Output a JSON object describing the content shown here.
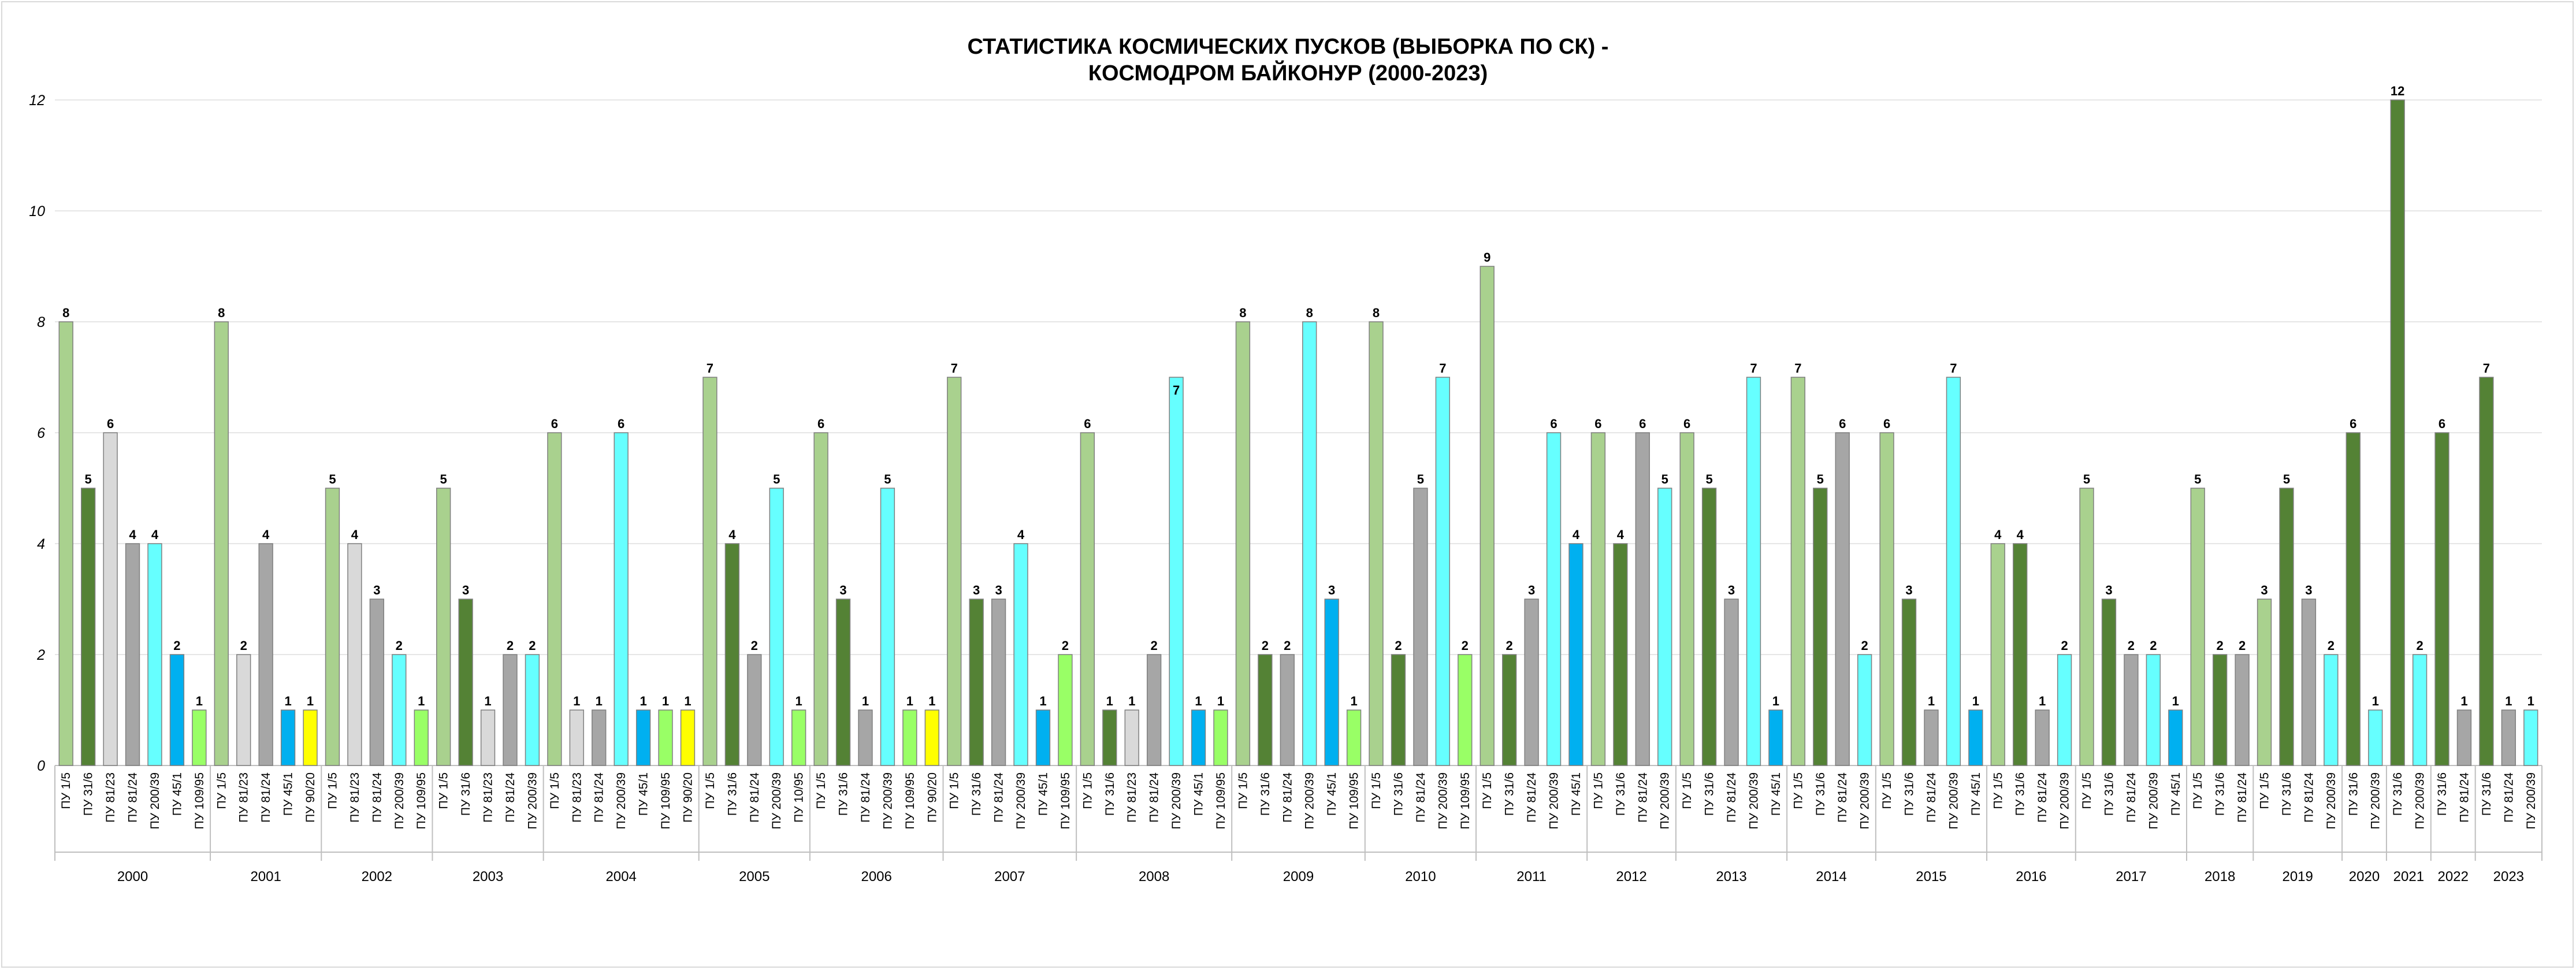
{
  "chart_data": {
    "type": "bar",
    "title": "СТАТИСТИКА КОСМИЧЕСКИХ ПУСКОВ (ВЫБОРКА ПО СК) -",
    "subtitle": "КОСМОДРОМ БАЙКОНУР (2000-2023)",
    "xlabel": "",
    "ylabel": "",
    "ylim": [
      0,
      12
    ],
    "yticks": [
      "0",
      "2",
      "4",
      "6",
      "8",
      "10",
      "12"
    ],
    "grid": true,
    "legend": "none",
    "colors": {
      "ПУ 1/5": "#a9d18e",
      "ПУ 31/6": "#548235",
      "ПУ 81/23": "#d9d9d9",
      "ПУ 81/24": "#a6a6a6",
      "ПУ 200/39": "#66ffff",
      "ПУ 45/1": "#00b0f0",
      "ПУ 109/95": "#99ff66",
      "ПУ 90/20": "#ffff00"
    },
    "groups": [
      {
        "year": "2000",
        "bars": [
          {
            "pad": "ПУ 1/5",
            "value": 8
          },
          {
            "pad": "ПУ 31/6",
            "value": 5
          },
          {
            "pad": "ПУ 81/23",
            "value": 6
          },
          {
            "pad": "ПУ 81/24",
            "value": 4
          },
          {
            "pad": "ПУ 200/39",
            "value": 4
          },
          {
            "pad": "ПУ 45/1",
            "value": 2
          },
          {
            "pad": "ПУ 109/95",
            "value": 1
          }
        ]
      },
      {
        "year": "2001",
        "bars": [
          {
            "pad": "ПУ 1/5",
            "value": 8
          },
          {
            "pad": "ПУ 81/23",
            "value": 2
          },
          {
            "pad": "ПУ 81/24",
            "value": 4
          },
          {
            "pad": "ПУ 45/1",
            "value": 1
          },
          {
            "pad": "ПУ 90/20",
            "value": 1
          }
        ]
      },
      {
        "year": "2002",
        "bars": [
          {
            "pad": "ПУ 1/5",
            "value": 5
          },
          {
            "pad": "ПУ 81/23",
            "value": 4
          },
          {
            "pad": "ПУ 81/24",
            "value": 3
          },
          {
            "pad": "ПУ 200/39",
            "value": 2
          },
          {
            "pad": "ПУ 109/95",
            "value": 1
          }
        ]
      },
      {
        "year": "2003",
        "bars": [
          {
            "pad": "ПУ 1/5",
            "value": 5
          },
          {
            "pad": "ПУ 31/6",
            "value": 3
          },
          {
            "pad": "ПУ 81/23",
            "value": 1
          },
          {
            "pad": "ПУ 81/24",
            "value": 2
          },
          {
            "pad": "ПУ 200/39",
            "value": 2
          }
        ]
      },
      {
        "year": "2004",
        "bars": [
          {
            "pad": "ПУ 1/5",
            "value": 6
          },
          {
            "pad": "ПУ 81/23",
            "value": 1
          },
          {
            "pad": "ПУ 81/24",
            "value": 1
          },
          {
            "pad": "ПУ 200/39",
            "value": 6
          },
          {
            "pad": "ПУ 45/1",
            "value": 1
          },
          {
            "pad": "ПУ 109/95",
            "value": 1
          },
          {
            "pad": "ПУ 90/20",
            "value": 1
          }
        ]
      },
      {
        "year": "2005",
        "bars": [
          {
            "pad": "ПУ 1/5",
            "value": 7
          },
          {
            "pad": "ПУ 31/6",
            "value": 4
          },
          {
            "pad": "ПУ 81/24",
            "value": 2
          },
          {
            "pad": "ПУ 200/39",
            "value": 5
          },
          {
            "pad": "ПУ 10/95",
            "value": 1
          }
        ]
      },
      {
        "year": "2006",
        "bars": [
          {
            "pad": "ПУ 1/5",
            "value": 6
          },
          {
            "pad": "ПУ 31/6",
            "value": 3
          },
          {
            "pad": "ПУ 81/24",
            "value": 1
          },
          {
            "pad": "ПУ 200/39",
            "value": 5
          },
          {
            "pad": "ПУ 109/95",
            "value": 1
          },
          {
            "pad": "ПУ 90/20",
            "value": 1
          }
        ]
      },
      {
        "year": "2007",
        "bars": [
          {
            "pad": "ПУ 1/5",
            "value": 7
          },
          {
            "pad": "ПУ 31/6",
            "value": 3
          },
          {
            "pad": "ПУ 81/24",
            "value": 3
          },
          {
            "pad": "ПУ 200/39",
            "value": 4
          },
          {
            "pad": "ПУ 45/1",
            "value": 1
          },
          {
            "pad": "ПУ 109/95",
            "value": 2
          }
        ]
      },
      {
        "year": "2008",
        "bars": [
          {
            "pad": "ПУ 1/5",
            "value": 6
          },
          {
            "pad": "ПУ 31/6",
            "value": 1
          },
          {
            "pad": "ПУ 81/23",
            "value": 1
          },
          {
            "pad": "ПУ 81/24",
            "value": 2
          },
          {
            "pad": "ПУ 200/39",
            "value": 7
          },
          {
            "pad": "ПУ 45/1",
            "value": 1
          },
          {
            "pad": "ПУ 109/95",
            "value": 1
          }
        ]
      },
      {
        "year": "2009",
        "bars": [
          {
            "pad": "ПУ 1/5",
            "value": 8
          },
          {
            "pad": "ПУ 31/6",
            "value": 2
          },
          {
            "pad": "ПУ 81/24",
            "value": 2
          },
          {
            "pad": "ПУ 200/39",
            "value": 8
          },
          {
            "pad": "ПУ 45/1",
            "value": 3
          },
          {
            "pad": "ПУ 109/95",
            "value": 1
          }
        ]
      },
      {
        "year": "2010",
        "bars": [
          {
            "pad": "ПУ 1/5",
            "value": 8
          },
          {
            "pad": "ПУ 31/6",
            "value": 2
          },
          {
            "pad": "ПУ 81/24",
            "value": 5
          },
          {
            "pad": "ПУ 200/39",
            "value": 7
          },
          {
            "pad": "ПУ 109/95",
            "value": 2
          }
        ]
      },
      {
        "year": "2011",
        "bars": [
          {
            "pad": "ПУ 1/5",
            "value": 9
          },
          {
            "pad": "ПУ 31/6",
            "value": 2
          },
          {
            "pad": "ПУ 81/24",
            "value": 3
          },
          {
            "pad": "ПУ 200/39",
            "value": 6
          },
          {
            "pad": "ПУ 45/1",
            "value": 4
          }
        ]
      },
      {
        "year": "2012",
        "bars": [
          {
            "pad": "ПУ 1/5",
            "value": 6
          },
          {
            "pad": "ПУ 31/6",
            "value": 4
          },
          {
            "pad": "ПУ 81/24",
            "value": 6
          },
          {
            "pad": "ПУ 200/39",
            "value": 5
          }
        ]
      },
      {
        "year": "2013",
        "bars": [
          {
            "pad": "ПУ 1/5",
            "value": 6
          },
          {
            "pad": "ПУ 31/6",
            "value": 5
          },
          {
            "pad": "ПУ 81/24",
            "value": 3
          },
          {
            "pad": "ПУ 200/39",
            "value": 7
          },
          {
            "pad": "ПУ 45/1",
            "value": 1
          }
        ]
      },
      {
        "year": "2014",
        "bars": [
          {
            "pad": "ПУ 1/5",
            "value": 7
          },
          {
            "pad": "ПУ 31/6",
            "value": 5
          },
          {
            "pad": "ПУ 81/24",
            "value": 6
          },
          {
            "pad": "ПУ 200/39",
            "value": 2
          }
        ]
      },
      {
        "year": "2015",
        "bars": [
          {
            "pad": "ПУ 1/5",
            "value": 6
          },
          {
            "pad": "ПУ 31/6",
            "value": 3
          },
          {
            "pad": "ПУ 81/24",
            "value": 1
          },
          {
            "pad": "ПУ 200/39",
            "value": 7
          },
          {
            "pad": "ПУ 45/1",
            "value": 1
          }
        ]
      },
      {
        "year": "2016",
        "bars": [
          {
            "pad": "ПУ 1/5",
            "value": 4
          },
          {
            "pad": "ПУ 31/6",
            "value": 4
          },
          {
            "pad": "ПУ 81/24",
            "value": 1
          },
          {
            "pad": "ПУ 200/39",
            "value": 2
          }
        ]
      },
      {
        "year": "2017",
        "bars": [
          {
            "pad": "ПУ 1/5",
            "value": 5
          },
          {
            "pad": "ПУ 31/6",
            "value": 3
          },
          {
            "pad": "ПУ 81/24",
            "value": 2
          },
          {
            "pad": "ПУ 200/39",
            "value": 2
          },
          {
            "pad": "ПУ 45/1",
            "value": 1
          }
        ]
      },
      {
        "year": "2018",
        "bars": [
          {
            "pad": "ПУ 1/5",
            "value": 5
          },
          {
            "pad": "ПУ 31/6",
            "value": 2
          },
          {
            "pad": "ПУ 81/24",
            "value": 2
          }
        ]
      },
      {
        "year": "2019",
        "bars": [
          {
            "pad": "ПУ 1/5",
            "value": 3
          },
          {
            "pad": "ПУ 31/6",
            "value": 5
          },
          {
            "pad": "ПУ 81/24",
            "value": 3
          },
          {
            "pad": "ПУ 200/39",
            "value": 2
          }
        ]
      },
      {
        "year": "2020",
        "bars": [
          {
            "pad": "ПУ 31/6",
            "value": 6
          },
          {
            "pad": "ПУ 200/39",
            "value": 1
          }
        ]
      },
      {
        "year": "2021",
        "bars": [
          {
            "pad": "ПУ 31/6",
            "value": 12
          },
          {
            "pad": "ПУ 200/39",
            "value": 2
          }
        ]
      },
      {
        "year": "2022",
        "bars": [
          {
            "pad": "ПУ 31/6",
            "value": 6
          },
          {
            "pad": "ПУ 81/24",
            "value": 1
          }
        ]
      },
      {
        "year": "2023",
        "bars": [
          {
            "pad": "ПУ 31/6",
            "value": 7
          },
          {
            "pad": "ПУ 81/24",
            "value": 1
          },
          {
            "pad": "ПУ 200/39",
            "value": 1
          }
        ]
      }
    ]
  }
}
